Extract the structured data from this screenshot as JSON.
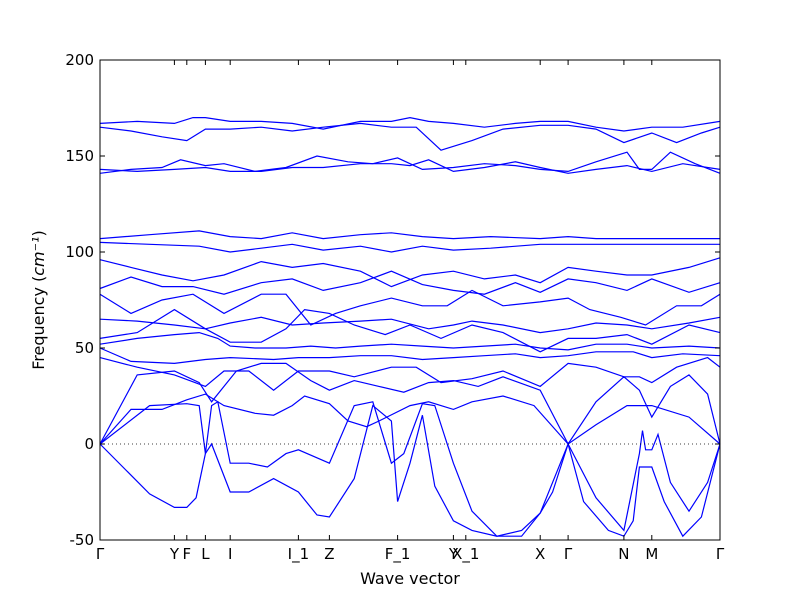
{
  "chart_data": {
    "type": "line",
    "xlabel": "Wave vector",
    "ylabel": "Frequency",
    "ylabel_unit": "cm⁻¹",
    "ylim": [
      -50,
      200
    ],
    "y_ticks": [
      -50,
      0,
      50,
      100,
      150,
      200
    ],
    "grid": false,
    "zero_line": true,
    "line_color": "#0000ff",
    "k_labels": [
      {
        "label": "Γ",
        "x": 0.0
      },
      {
        "label": "Y",
        "x": 0.12
      },
      {
        "label": "F",
        "x": 0.14
      },
      {
        "label": "L",
        "x": 0.17
      },
      {
        "label": "I",
        "x": 0.21
      },
      {
        "label": "I_1",
        "x": 0.32
      },
      {
        "label": "Z",
        "x": 0.37
      },
      {
        "label": "F_1",
        "x": 0.48
      },
      {
        "label": "Y",
        "x": 0.57
      },
      {
        "label": "X_1",
        "x": 0.59
      },
      {
        "label": "X",
        "x": 0.71
      },
      {
        "label": "Γ",
        "x": 0.755
      },
      {
        "label": "N",
        "x": 0.845
      },
      {
        "label": "M",
        "x": 0.89
      },
      {
        "label": "Γ",
        "x": 1.0
      }
    ],
    "series": [
      {
        "x": [
          0.0,
          0.08,
          0.12,
          0.14,
          0.155,
          0.17,
          0.18,
          0.21,
          0.24,
          0.28,
          0.32,
          0.35,
          0.37,
          0.41,
          0.44,
          0.47,
          0.48,
          0.5,
          0.52,
          0.54,
          0.57,
          0.6,
          0.64,
          0.68,
          0.71,
          0.73,
          0.755,
          0.78,
          0.82,
          0.845,
          0.86,
          0.87,
          0.89,
          0.91,
          0.94,
          0.97,
          1.0
        ],
        "values": [
          0,
          -26,
          -33,
          -33,
          -28,
          -5,
          0,
          -25,
          -25,
          -18,
          -25,
          -37,
          -38,
          -18,
          20,
          12,
          -30,
          -10,
          15,
          -22,
          -40,
          -45,
          -48,
          -45,
          -36,
          -25,
          0,
          -30,
          -45,
          -48,
          -40,
          -12,
          -12,
          -30,
          -48,
          -38,
          0
        ]
      },
      {
        "x": [
          0.0,
          0.08,
          0.14,
          0.16,
          0.17,
          0.18,
          0.19,
          0.21,
          0.24,
          0.27,
          0.3,
          0.32,
          0.37,
          0.41,
          0.44,
          0.47,
          0.49,
          0.52,
          0.54,
          0.57,
          0.6,
          0.64,
          0.68,
          0.71,
          0.755,
          0.8,
          0.845,
          0.87,
          0.875,
          0.88,
          0.89,
          0.9,
          0.92,
          0.95,
          0.98,
          1.0
        ],
        "values": [
          0,
          20,
          21,
          20,
          -5,
          20,
          22,
          -10,
          -10,
          -12,
          -5,
          -3,
          -10,
          20,
          22,
          -10,
          -5,
          21,
          20,
          -10,
          -35,
          -48,
          -48,
          -36,
          0,
          -28,
          -45,
          -5,
          7,
          -3,
          -3,
          5,
          -20,
          -35,
          -20,
          0
        ]
      },
      {
        "x": [
          0.0,
          0.06,
          0.12,
          0.16,
          0.18,
          0.2,
          0.22,
          0.26,
          0.3,
          0.34,
          0.37,
          0.41,
          0.45,
          0.49,
          0.53,
          0.57,
          0.61,
          0.65,
          0.71,
          0.755,
          0.8,
          0.845,
          0.87,
          0.89,
          0.92,
          0.95,
          0.98,
          1.0
        ],
        "values": [
          0,
          36,
          38,
          32,
          22,
          30,
          38,
          42,
          42,
          33,
          28,
          33,
          30,
          27,
          32,
          33,
          30,
          35,
          28,
          0,
          22,
          35,
          28,
          14,
          30,
          36,
          26,
          0
        ]
      },
      {
        "x": [
          0.0,
          0.05,
          0.1,
          0.14,
          0.17,
          0.2,
          0.25,
          0.28,
          0.31,
          0.33,
          0.37,
          0.4,
          0.43,
          0.45,
          0.5,
          0.53,
          0.57,
          0.6,
          0.65,
          0.7,
          0.755,
          0.8,
          0.85,
          0.89,
          0.95,
          1.0
        ],
        "values": [
          0,
          18,
          18,
          23,
          26,
          20,
          16,
          15,
          20,
          25,
          21,
          12,
          9,
          12,
          20,
          22,
          18,
          22,
          25,
          20,
          0,
          10,
          20,
          20,
          14,
          0
        ]
      },
      {
        "x": [
          0.0,
          0.06,
          0.12,
          0.17,
          0.2,
          0.24,
          0.28,
          0.32,
          0.37,
          0.41,
          0.47,
          0.51,
          0.55,
          0.6,
          0.65,
          0.71,
          0.755,
          0.8,
          0.845,
          0.87,
          0.89,
          0.93,
          0.98,
          1.0
        ],
        "values": [
          45,
          40,
          36,
          30,
          38,
          38,
          28,
          38,
          38,
          35,
          40,
          40,
          32,
          34,
          38,
          30,
          42,
          40,
          35,
          35,
          32,
          40,
          45,
          40
        ]
      },
      {
        "x": [
          0.0,
          0.05,
          0.12,
          0.17,
          0.21,
          0.28,
          0.32,
          0.37,
          0.42,
          0.47,
          0.52,
          0.57,
          0.62,
          0.67,
          0.71,
          0.755,
          0.8,
          0.86,
          0.89,
          0.94,
          1.0
        ],
        "values": [
          50,
          43,
          42,
          44,
          45,
          44,
          45,
          45,
          46,
          46,
          44,
          45,
          46,
          47,
          45,
          46,
          48,
          48,
          45,
          47,
          46
        ]
      },
      {
        "x": [
          0.0,
          0.06,
          0.12,
          0.16,
          0.19,
          0.21,
          0.25,
          0.3,
          0.34,
          0.38,
          0.42,
          0.47,
          0.52,
          0.57,
          0.62,
          0.67,
          0.71,
          0.755,
          0.8,
          0.85,
          0.89,
          0.95,
          1.0
        ],
        "values": [
          52,
          55,
          57,
          58,
          55,
          51,
          50,
          50,
          51,
          50,
          51,
          52,
          51,
          50,
          51,
          52,
          50,
          49,
          52,
          52,
          50,
          51,
          50
        ]
      },
      {
        "x": [
          0.0,
          0.06,
          0.12,
          0.17,
          0.21,
          0.26,
          0.3,
          0.33,
          0.37,
          0.41,
          0.46,
          0.5,
          0.55,
          0.6,
          0.65,
          0.71,
          0.755,
          0.8,
          0.85,
          0.89,
          0.95,
          1.0
        ],
        "values": [
          55,
          58,
          70,
          60,
          53,
          53,
          60,
          70,
          68,
          62,
          57,
          62,
          55,
          62,
          58,
          48,
          55,
          55,
          57,
          52,
          62,
          58
        ]
      },
      {
        "x": [
          0.0,
          0.06,
          0.12,
          0.17,
          0.21,
          0.26,
          0.31,
          0.36,
          0.42,
          0.47,
          0.53,
          0.57,
          0.6,
          0.65,
          0.71,
          0.755,
          0.8,
          0.85,
          0.89,
          0.95,
          1.0
        ],
        "values": [
          65,
          64,
          62,
          60,
          63,
          66,
          62,
          63,
          64,
          65,
          60,
          62,
          64,
          62,
          58,
          60,
          63,
          62,
          60,
          63,
          66
        ]
      },
      {
        "x": [
          0.0,
          0.05,
          0.1,
          0.15,
          0.2,
          0.26,
          0.3,
          0.34,
          0.38,
          0.42,
          0.47,
          0.52,
          0.56,
          0.6,
          0.65,
          0.71,
          0.755,
          0.79,
          0.84,
          0.88,
          0.93,
          0.97,
          1.0
        ],
        "values": [
          78,
          68,
          75,
          78,
          68,
          78,
          78,
          62,
          68,
          72,
          76,
          72,
          72,
          80,
          72,
          74,
          76,
          70,
          66,
          62,
          72,
          72,
          78
        ]
      },
      {
        "x": [
          0.0,
          0.05,
          0.1,
          0.15,
          0.2,
          0.26,
          0.31,
          0.36,
          0.42,
          0.47,
          0.52,
          0.57,
          0.62,
          0.67,
          0.71,
          0.755,
          0.8,
          0.85,
          0.89,
          0.95,
          1.0
        ],
        "values": [
          81,
          87,
          82,
          82,
          78,
          84,
          86,
          80,
          84,
          90,
          83,
          80,
          78,
          84,
          79,
          86,
          84,
          80,
          86,
          79,
          84
        ]
      },
      {
        "x": [
          0.0,
          0.05,
          0.1,
          0.15,
          0.2,
          0.26,
          0.31,
          0.36,
          0.42,
          0.47,
          0.52,
          0.57,
          0.62,
          0.67,
          0.71,
          0.755,
          0.8,
          0.85,
          0.89,
          0.95,
          1.0
        ],
        "values": [
          96,
          92,
          88,
          85,
          88,
          95,
          92,
          94,
          90,
          82,
          88,
          90,
          86,
          88,
          84,
          92,
          90,
          88,
          88,
          92,
          97
        ]
      },
      {
        "x": [
          0.0,
          0.08,
          0.16,
          0.21,
          0.26,
          0.31,
          0.36,
          0.42,
          0.47,
          0.52,
          0.57,
          0.63,
          0.71,
          0.755,
          0.8,
          0.86,
          0.9,
          0.95,
          1.0
        ],
        "values": [
          105,
          104,
          103,
          100,
          102,
          104,
          101,
          103,
          100,
          103,
          101,
          102,
          104,
          104,
          104,
          104,
          104,
          104,
          104
        ]
      },
      {
        "x": [
          0.0,
          0.08,
          0.16,
          0.21,
          0.26,
          0.31,
          0.36,
          0.42,
          0.47,
          0.52,
          0.57,
          0.63,
          0.71,
          0.755,
          0.8,
          0.86,
          0.9,
          0.95,
          1.0
        ],
        "values": [
          107,
          109,
          111,
          108,
          107,
          110,
          107,
          109,
          110,
          108,
          107,
          108,
          107,
          108,
          107,
          107,
          107,
          107,
          107
        ]
      },
      {
        "x": [
          0.0,
          0.05,
          0.1,
          0.13,
          0.17,
          0.2,
          0.25,
          0.3,
          0.35,
          0.4,
          0.44,
          0.48,
          0.52,
          0.57,
          0.62,
          0.67,
          0.71,
          0.755,
          0.8,
          0.85,
          0.87,
          0.89,
          0.92,
          0.96,
          1.0
        ],
        "values": [
          141,
          143,
          144,
          148,
          145,
          146,
          142,
          144,
          150,
          147,
          146,
          149,
          143,
          144,
          146,
          145,
          143,
          142,
          147,
          152,
          143,
          143,
          152,
          146,
          141
        ]
      },
      {
        "x": [
          0.0,
          0.06,
          0.12,
          0.17,
          0.21,
          0.26,
          0.31,
          0.36,
          0.42,
          0.47,
          0.5,
          0.53,
          0.57,
          0.62,
          0.67,
          0.71,
          0.755,
          0.8,
          0.85,
          0.89,
          0.94,
          1.0
        ],
        "values": [
          143,
          142,
          143,
          144,
          142,
          142,
          144,
          144,
          146,
          146,
          145,
          148,
          142,
          144,
          147,
          144,
          141,
          143,
          145,
          142,
          146,
          143
        ]
      },
      {
        "x": [
          0.0,
          0.05,
          0.1,
          0.14,
          0.17,
          0.21,
          0.26,
          0.31,
          0.36,
          0.42,
          0.47,
          0.51,
          0.55,
          0.6,
          0.65,
          0.71,
          0.755,
          0.8,
          0.845,
          0.89,
          0.93,
          0.97,
          1.0
        ],
        "values": [
          165,
          163,
          160,
          158,
          164,
          164,
          165,
          163,
          165,
          167,
          165,
          165,
          153,
          158,
          164,
          166,
          166,
          164,
          157,
          162,
          157,
          162,
          165
        ]
      },
      {
        "x": [
          0.0,
          0.06,
          0.12,
          0.15,
          0.17,
          0.21,
          0.26,
          0.31,
          0.36,
          0.42,
          0.47,
          0.5,
          0.53,
          0.57,
          0.62,
          0.67,
          0.71,
          0.755,
          0.8,
          0.845,
          0.89,
          0.94,
          1.0
        ],
        "values": [
          167,
          168,
          167,
          170,
          170,
          168,
          168,
          167,
          164,
          168,
          168,
          170,
          168,
          167,
          165,
          167,
          168,
          168,
          165,
          163,
          165,
          165,
          168
        ]
      }
    ]
  }
}
